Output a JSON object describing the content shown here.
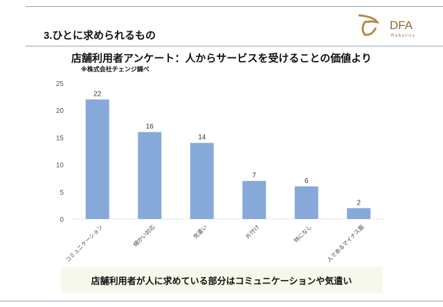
{
  "section_title": "3.ひとに求められるもの",
  "logo": {
    "name": "DFA",
    "sub": "Robotics"
  },
  "callout": "店舗利用者が人に求めている部分はコミュニケーションや気遣い",
  "colors": {
    "bar": "#86a9d9",
    "callout_bg": "#f7f8ec",
    "rule": "#8aa3b8",
    "logo": "#b08a4a"
  },
  "chart_data": {
    "type": "bar",
    "title": "店舗利用者アンケート：人からサービスを受けることの価値より",
    "subtitle": "※株式会社チェンジ調べ",
    "categories": [
      "コミュニケーション",
      "細かい対応",
      "気遣い",
      "片付け",
      "特になし",
      "人であるマイナス面"
    ],
    "values": [
      22,
      16,
      14,
      7,
      6,
      2
    ],
    "ylim": [
      0,
      25
    ],
    "yticks": [
      0,
      5,
      10,
      15,
      20,
      25
    ],
    "xlabel": "",
    "ylabel": "",
    "grid": false
  }
}
